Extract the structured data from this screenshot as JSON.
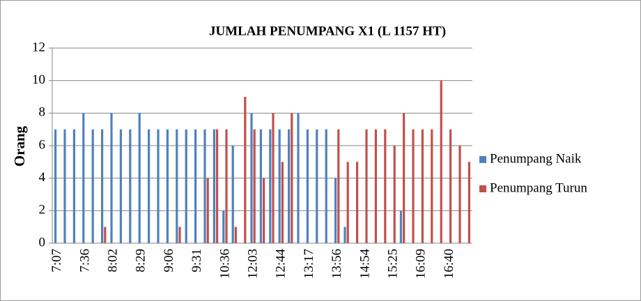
{
  "chart_data": {
    "type": "bar",
    "title": "JUMLAH PENUMPANG X1 (L 1157 HT)",
    "ylabel": "Orang",
    "categories": [
      "7:07",
      null,
      null,
      "7:36",
      null,
      null,
      "8:02",
      null,
      null,
      "8:29",
      null,
      null,
      "9:06",
      null,
      null,
      "9:31",
      null,
      null,
      "10:36",
      null,
      null,
      "12:03",
      null,
      null,
      "12:44",
      null,
      null,
      "13:17",
      null,
      null,
      "13:56",
      null,
      null,
      "14:54",
      null,
      null,
      "15:25",
      null,
      null,
      "16:09",
      null,
      null,
      "16:40",
      null,
      null
    ],
    "series": [
      {
        "name": "Penumpang Naik",
        "color": "#4f81bd",
        "values": [
          7,
          7,
          7,
          8,
          7,
          7,
          8,
          7,
          7,
          8,
          7,
          7,
          7,
          7,
          7,
          7,
          7,
          7,
          2,
          6,
          0,
          8,
          7,
          7,
          7,
          7,
          8,
          7,
          7,
          7,
          4,
          1,
          0,
          0,
          0,
          0,
          0,
          2,
          0,
          0,
          0,
          0,
          0,
          0,
          0
        ]
      },
      {
        "name": "Penumpang Turun",
        "color": "#c0504d",
        "values": [
          0,
          0,
          0,
          0,
          0,
          1,
          0,
          0,
          0,
          0,
          0,
          0,
          0,
          1,
          0,
          0,
          4,
          7,
          7,
          1,
          9,
          7,
          4,
          8,
          5,
          8,
          0,
          0,
          0,
          0,
          7,
          5,
          5,
          7,
          7,
          7,
          6,
          8,
          7,
          7,
          7,
          10,
          7,
          6,
          5
        ]
      }
    ],
    "ylim": [
      0,
      12
    ],
    "yticks": [
      0,
      2,
      4,
      6,
      8,
      10,
      12
    ],
    "grid": true,
    "legend": "right"
  }
}
